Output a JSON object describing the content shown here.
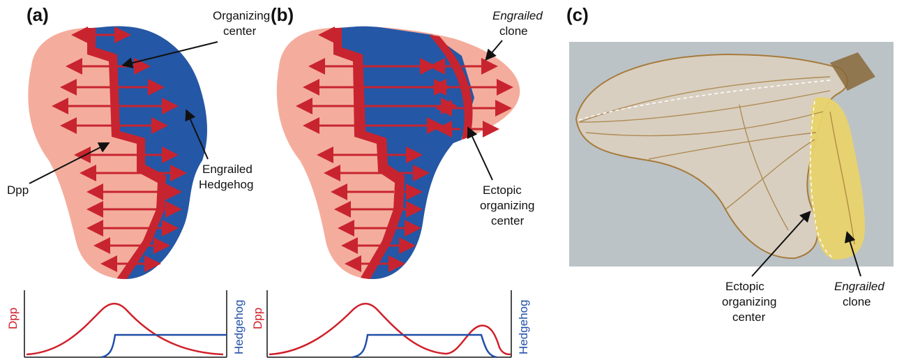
{
  "panels": {
    "a": {
      "label": "(a)"
    },
    "b": {
      "label": "(b)"
    },
    "c": {
      "label": "(c)"
    }
  },
  "panel_a": {
    "organizing_center": [
      "Organizing",
      "center"
    ],
    "engrailed_hedgehog": [
      "Engrailed",
      "Hedgehog"
    ],
    "dpp": "Dpp"
  },
  "panel_b": {
    "clone": [
      "Engrailed",
      "clone"
    ],
    "ectopic": [
      "Ectopic",
      "organizing",
      "center"
    ]
  },
  "panel_c": {
    "ectopic": [
      "Ectopic",
      "organizing",
      "center"
    ],
    "clone": [
      "Engrailed",
      "clone"
    ]
  },
  "plots": {
    "left_axis_label": "Dpp",
    "right_axis_label": "Hedgehog"
  },
  "colors": {
    "posterior_blue": "#2457a6",
    "anterior_pink": "#f4ad9d",
    "organizer_red": "#c8242f",
    "dpp_curve": "#d0202a",
    "hh_curve": "#1f4ea8",
    "clone_yellow": "#e8d36b",
    "photo_bg": "#bcc3c6"
  },
  "icons": {
    "arrow": "right-arrow-icon",
    "leader": "pointer-arrow-icon"
  }
}
